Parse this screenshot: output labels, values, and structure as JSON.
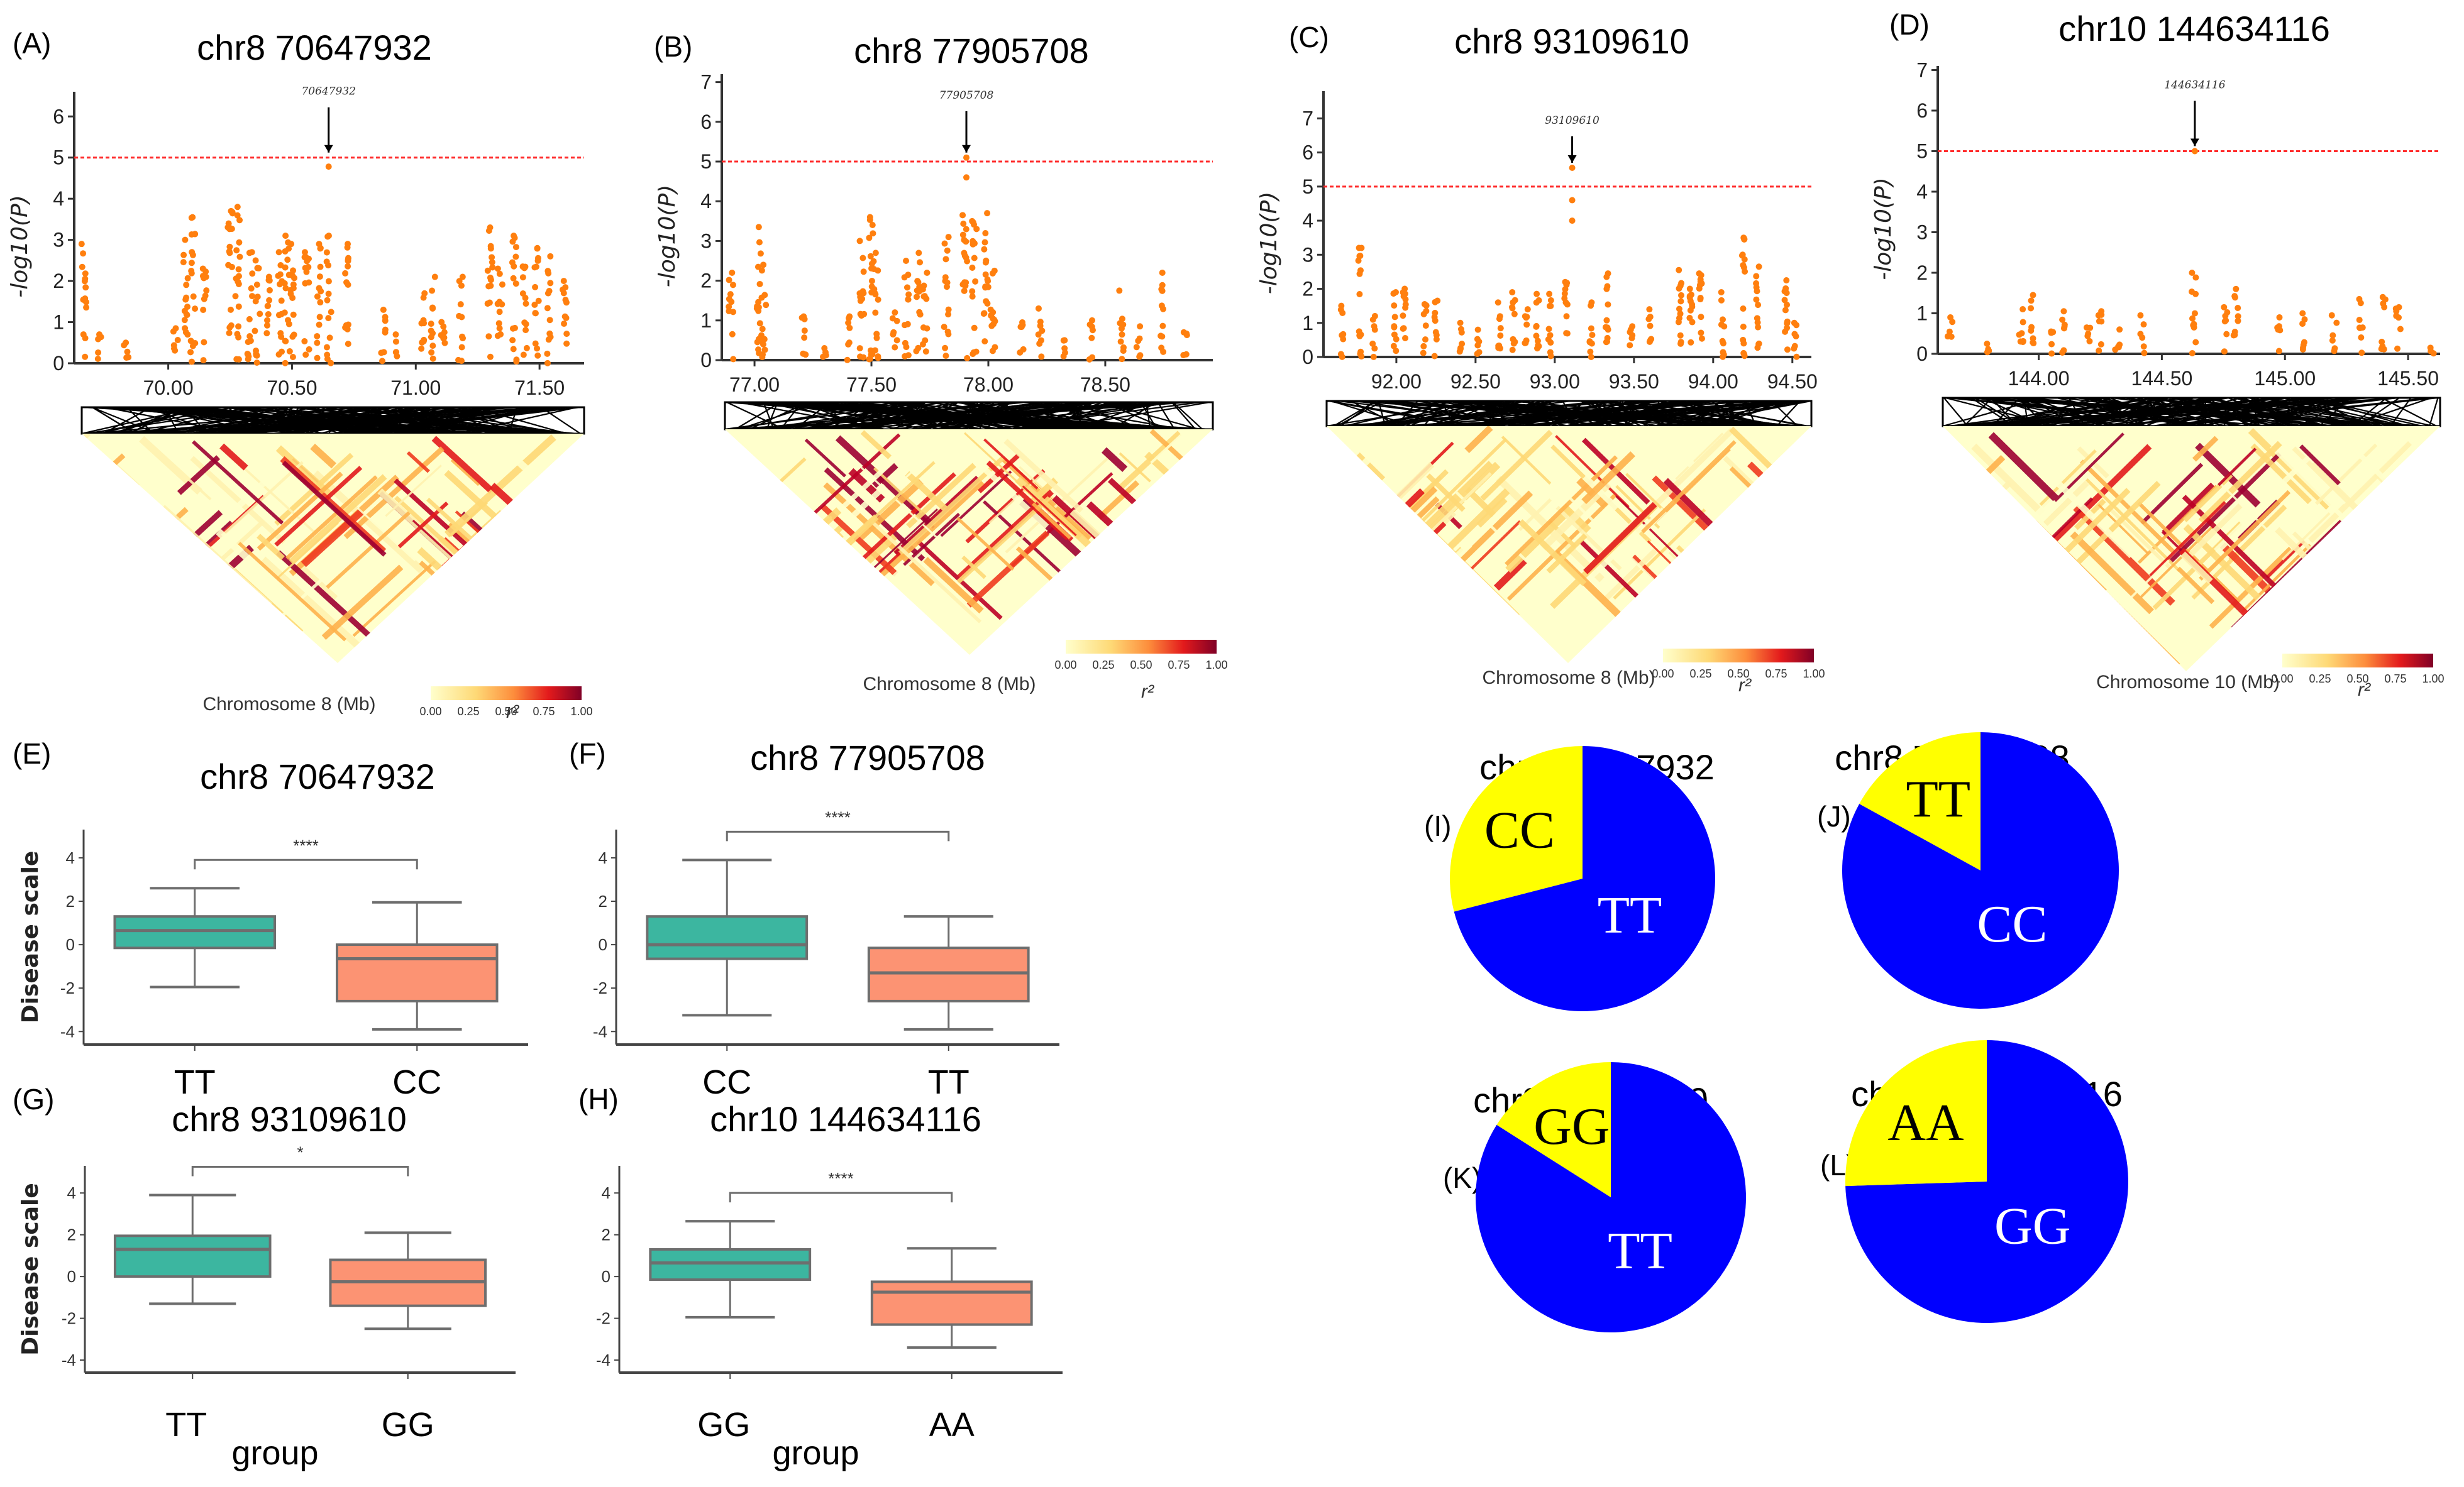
{
  "chart_data": {
    "manhattan": [
      {
        "panel": "(A)",
        "title": "chr8 70647932",
        "type": "scatter",
        "ylabel": "-log10(P)",
        "xlabel": "Chromosome 8 (Mb)",
        "xlim": [
          69.62,
          71.68
        ],
        "ylim": [
          0,
          6.6
        ],
        "yticks": [
          0,
          1,
          2,
          3,
          4,
          5,
          6
        ],
        "xticks": [
          "70.00",
          "70.50",
          "71.00",
          "71.50"
        ],
        "xtick_values": [
          70.0,
          70.5,
          71.0,
          71.5
        ],
        "threshold": 5,
        "lead_snp": {
          "label": "70647932",
          "x": 70.648,
          "y": 4.78
        },
        "clusters": [
          {
            "x": 69.66,
            "max": 2.9
          },
          {
            "x": 69.72,
            "max": 0.7
          },
          {
            "x": 69.83,
            "max": 0.5
          },
          {
            "x": 70.03,
            "max": 0.85
          },
          {
            "x": 70.07,
            "max": 3.0
          },
          {
            "x": 70.1,
            "max": 3.55
          },
          {
            "x": 70.15,
            "max": 2.3
          },
          {
            "x": 70.25,
            "max": 3.7
          },
          {
            "x": 70.28,
            "max": 3.8
          },
          {
            "x": 70.33,
            "max": 2.7
          },
          {
            "x": 70.36,
            "max": 2.5
          },
          {
            "x": 70.4,
            "max": 2.1
          },
          {
            "x": 70.45,
            "max": 2.7
          },
          {
            "x": 70.48,
            "max": 3.1
          },
          {
            "x": 70.5,
            "max": 2.9
          },
          {
            "x": 70.56,
            "max": 2.7
          },
          {
            "x": 70.61,
            "max": 2.9
          },
          {
            "x": 70.65,
            "max": 3.1
          },
          {
            "x": 70.72,
            "max": 2.9
          },
          {
            "x": 70.87,
            "max": 1.3
          },
          {
            "x": 70.92,
            "max": 0.7
          },
          {
            "x": 71.03,
            "max": 1.7
          },
          {
            "x": 71.07,
            "max": 2.1
          },
          {
            "x": 71.11,
            "max": 1.0
          },
          {
            "x": 71.18,
            "max": 2.1
          },
          {
            "x": 71.3,
            "max": 3.3
          },
          {
            "x": 71.34,
            "max": 2.3
          },
          {
            "x": 71.4,
            "max": 3.1
          },
          {
            "x": 71.44,
            "max": 2.35
          },
          {
            "x": 71.49,
            "max": 2.8
          },
          {
            "x": 71.54,
            "max": 2.6
          },
          {
            "x": 71.6,
            "max": 2.0
          }
        ]
      },
      {
        "panel": "(B)",
        "title": "chr8 77905708",
        "type": "scatter",
        "ylabel": "-log10(P)",
        "xlabel": "Chromosome 8 (Mb)",
        "xlim": [
          76.86,
          78.96
        ],
        "ylim": [
          0,
          7.2
        ],
        "yticks": [
          0,
          1,
          2,
          3,
          4,
          5,
          6,
          7
        ],
        "xticks": [
          "77.00",
          "77.50",
          "78.00",
          "78.50"
        ],
        "xtick_values": [
          77.0,
          77.5,
          78.0,
          78.5
        ],
        "threshold": 5,
        "lead_snp": {
          "label": "77905708",
          "x": 77.906,
          "y": 5.1
        },
        "extra_points": [
          {
            "x": 77.906,
            "y": 4.6
          }
        ],
        "clusters": [
          {
            "x": 76.9,
            "max": 2.2
          },
          {
            "x": 77.02,
            "max": 3.35
          },
          {
            "x": 77.04,
            "max": 2.4
          },
          {
            "x": 77.21,
            "max": 1.1
          },
          {
            "x": 77.3,
            "max": 0.3
          },
          {
            "x": 77.4,
            "max": 1.1
          },
          {
            "x": 77.46,
            "max": 3.0
          },
          {
            "x": 77.5,
            "max": 3.6
          },
          {
            "x": 77.52,
            "max": 2.7
          },
          {
            "x": 77.6,
            "max": 1.2
          },
          {
            "x": 77.65,
            "max": 2.5
          },
          {
            "x": 77.7,
            "max": 2.7
          },
          {
            "x": 77.73,
            "max": 2.2
          },
          {
            "x": 77.82,
            "max": 3.1
          },
          {
            "x": 77.9,
            "max": 3.65
          },
          {
            "x": 77.94,
            "max": 3.5
          },
          {
            "x": 77.99,
            "max": 3.7
          },
          {
            "x": 78.02,
            "max": 2.25
          },
          {
            "x": 78.14,
            "max": 0.95
          },
          {
            "x": 78.22,
            "max": 1.3
          },
          {
            "x": 78.32,
            "max": 0.5
          },
          {
            "x": 78.44,
            "max": 1.0
          },
          {
            "x": 78.57,
            "max": 1.75
          },
          {
            "x": 78.64,
            "max": 0.85
          },
          {
            "x": 78.74,
            "max": 2.2
          },
          {
            "x": 78.84,
            "max": 0.7
          }
        ]
      },
      {
        "panel": "(C)",
        "title": "chr8 93109610",
        "type": "scatter",
        "ylabel": "-log10(P)",
        "xlabel": "Chromosome 8 (Mb)",
        "xlim": [
          91.54,
          94.62
        ],
        "ylim": [
          0,
          7.8
        ],
        "yticks": [
          0,
          1,
          2,
          3,
          4,
          5,
          6,
          7
        ],
        "xticks": [
          "92.00",
          "92.50",
          "93.00",
          "93.50",
          "94.00",
          "94.50"
        ],
        "xtick_values": [
          92.0,
          92.5,
          93.0,
          93.5,
          94.0,
          94.5
        ],
        "threshold": 5,
        "lead_snp": {
          "label": "93109610",
          "x": 93.11,
          "y": 5.55
        },
        "extra_points": [
          {
            "x": 93.11,
            "y": 4.6
          },
          {
            "x": 93.11,
            "y": 4.0
          }
        ],
        "clusters": [
          {
            "x": 91.66,
            "max": 1.5
          },
          {
            "x": 91.77,
            "max": 3.2
          },
          {
            "x": 91.86,
            "max": 1.2
          },
          {
            "x": 91.99,
            "max": 1.9
          },
          {
            "x": 92.05,
            "max": 2.0
          },
          {
            "x": 92.18,
            "max": 1.55
          },
          {
            "x": 92.25,
            "max": 1.65
          },
          {
            "x": 92.41,
            "max": 1.0
          },
          {
            "x": 92.52,
            "max": 0.8
          },
          {
            "x": 92.65,
            "max": 1.6
          },
          {
            "x": 92.74,
            "max": 1.9
          },
          {
            "x": 92.82,
            "max": 1.4
          },
          {
            "x": 92.89,
            "max": 1.85
          },
          {
            "x": 92.97,
            "max": 1.85
          },
          {
            "x": 93.07,
            "max": 2.2
          },
          {
            "x": 93.23,
            "max": 1.6
          },
          {
            "x": 93.33,
            "max": 2.45
          },
          {
            "x": 93.48,
            "max": 0.9
          },
          {
            "x": 93.6,
            "max": 1.4
          },
          {
            "x": 93.79,
            "max": 2.55
          },
          {
            "x": 93.86,
            "max": 2.0
          },
          {
            "x": 93.92,
            "max": 2.45
          },
          {
            "x": 94.06,
            "max": 1.9
          },
          {
            "x": 94.19,
            "max": 3.5
          },
          {
            "x": 94.28,
            "max": 2.65
          },
          {
            "x": 94.46,
            "max": 2.25
          },
          {
            "x": 94.52,
            "max": 1.0
          }
        ]
      },
      {
        "panel": "(D)",
        "title": "chr10 144634116",
        "type": "scatter",
        "ylabel": "-log10(P)",
        "xlabel": "Chromosome 10 (Mb)",
        "xlim": [
          143.59,
          145.63
        ],
        "ylim": [
          0,
          7.1
        ],
        "yticks": [
          0,
          1,
          2,
          3,
          4,
          5,
          6,
          7
        ],
        "xticks": [
          "144.00",
          "144.50",
          "145.00",
          "145.50"
        ],
        "xtick_values": [
          144.0,
          144.5,
          145.0,
          145.5
        ],
        "threshold": 5,
        "lead_snp": {
          "label": "144634116",
          "x": 144.634,
          "y": 5.0
        },
        "clusters": [
          {
            "x": 143.64,
            "max": 0.9
          },
          {
            "x": 143.8,
            "max": 0.25
          },
          {
            "x": 143.93,
            "max": 1.1
          },
          {
            "x": 143.97,
            "max": 1.45
          },
          {
            "x": 144.05,
            "max": 0.55
          },
          {
            "x": 144.1,
            "max": 1.05
          },
          {
            "x": 144.2,
            "max": 0.65
          },
          {
            "x": 144.25,
            "max": 1.05
          },
          {
            "x": 144.32,
            "max": 0.6
          },
          {
            "x": 144.42,
            "max": 0.95
          },
          {
            "x": 144.63,
            "max": 2.0
          },
          {
            "x": 144.76,
            "max": 1.15
          },
          {
            "x": 144.8,
            "max": 1.6
          },
          {
            "x": 144.97,
            "max": 0.9
          },
          {
            "x": 145.08,
            "max": 1.0
          },
          {
            "x": 145.2,
            "max": 0.95
          },
          {
            "x": 145.31,
            "max": 1.35
          },
          {
            "x": 145.4,
            "max": 1.4
          },
          {
            "x": 145.46,
            "max": 1.15
          },
          {
            "x": 145.6,
            "max": 0.15
          }
        ]
      }
    ],
    "ld_heatmaps": [
      {
        "panel": "(A)",
        "xlabel": "Chromosome 8 (Mb)",
        "colorbar_label": "r²",
        "colorbar_ticks": [
          "0.00",
          "0.25",
          "0.50",
          "0.75",
          "1.00"
        ],
        "strong_ld_density": 0.34
      },
      {
        "panel": "(B)",
        "xlabel": "Chromosome 8 (Mb)",
        "colorbar_label": "r²",
        "colorbar_ticks": [
          "0.00",
          "0.25",
          "0.50",
          "0.75",
          "1.00"
        ],
        "strong_ld_density": 0.38
      },
      {
        "panel": "(C)",
        "xlabel": "Chromosome 8 (Mb)",
        "colorbar_label": "r²",
        "colorbar_ticks": [
          "0.00",
          "0.25",
          "0.50",
          "0.75",
          "1.00"
        ],
        "strong_ld_density": 0.2
      },
      {
        "panel": "(D)",
        "xlabel": "Chromosome 10 (Mb)",
        "colorbar_label": "r²",
        "colorbar_ticks": [
          "0.00",
          "0.25",
          "0.50",
          "0.75",
          "1.00"
        ],
        "strong_ld_density": 0.24
      }
    ],
    "boxplots": [
      {
        "panel": "(E)",
        "title": "chr8 70647932",
        "type": "box",
        "ylabel": "Disease scale",
        "xlabel": "",
        "ylim": [
          -4.6,
          5.3
        ],
        "yticks": [
          -4,
          -2,
          0,
          2,
          4
        ],
        "significance": "****",
        "groups": [
          {
            "name": "TT",
            "whisker_low": -1.95,
            "q1": -0.15,
            "median": 0.65,
            "q3": 1.3,
            "whisker_high": 2.6,
            "color": "#3cb6a0"
          },
          {
            "name": "CC",
            "whisker_low": -3.9,
            "q1": -2.6,
            "median": -0.65,
            "q3": 0.0,
            "whisker_high": 1.95,
            "color": "#fc9373"
          }
        ]
      },
      {
        "panel": "(F)",
        "title": "chr8 77905708",
        "type": "box",
        "ylabel": "",
        "xlabel": "",
        "ylim": [
          -4.6,
          5.3
        ],
        "yticks": [
          -4,
          -2,
          0,
          2,
          4
        ],
        "significance": "****",
        "groups": [
          {
            "name": "CC",
            "whisker_low": -3.25,
            "q1": -0.65,
            "median": 0.0,
            "q3": 1.3,
            "whisker_high": 3.9,
            "color": "#3cb6a0"
          },
          {
            "name": "TT",
            "whisker_low": -3.9,
            "q1": -2.6,
            "median": -1.3,
            "q3": -0.15,
            "whisker_high": 1.3,
            "color": "#fc9373"
          }
        ]
      },
      {
        "panel": "(G)",
        "title": "chr8 93109610",
        "type": "box",
        "ylabel": "Disease scale",
        "xlabel": "group",
        "ylim": [
          -4.6,
          5.3
        ],
        "yticks": [
          -4,
          -2,
          0,
          2,
          4
        ],
        "significance": "*",
        "groups": [
          {
            "name": "TT",
            "whisker_low": -1.3,
            "q1": 0.0,
            "median": 1.3,
            "q3": 1.95,
            "whisker_high": 3.9,
            "color": "#3cb6a0"
          },
          {
            "name": "GG",
            "whisker_low": -2.5,
            "q1": -1.4,
            "median": -0.25,
            "q3": 0.8,
            "whisker_high": 2.1,
            "color": "#fc9373"
          }
        ]
      },
      {
        "panel": "(H)",
        "title": "chr10 144634116",
        "type": "box",
        "ylabel": "",
        "xlabel": "group",
        "ylim": [
          -4.6,
          5.3
        ],
        "yticks": [
          -4,
          -2,
          0,
          2,
          4
        ],
        "significance": "****",
        "groups": [
          {
            "name": "GG",
            "whisker_low": -1.95,
            "q1": -0.15,
            "median": 0.65,
            "q3": 1.3,
            "whisker_high": 2.65,
            "color": "#3cb6a0"
          },
          {
            "name": "AA",
            "whisker_low": -3.4,
            "q1": -2.3,
            "median": -0.75,
            "q3": -0.25,
            "whisker_high": 1.35,
            "color": "#fc9373"
          }
        ]
      }
    ],
    "pies": [
      {
        "panel": "(I)",
        "title": "chr8 70647932",
        "type": "pie",
        "slices": [
          {
            "label": "TT",
            "value": 0.71,
            "color": "#0000ff",
            "text_color": "#ffffff"
          },
          {
            "label": "CC",
            "value": 0.29,
            "color": "#ffff00",
            "text_color": "#000000"
          }
        ]
      },
      {
        "panel": "(J)",
        "title": "chr8 77905708",
        "type": "pie",
        "slices": [
          {
            "label": "CC",
            "value": 0.83,
            "color": "#0000ff",
            "text_color": "#ffffff"
          },
          {
            "label": "TT",
            "value": 0.17,
            "color": "#ffff00",
            "text_color": "#000000"
          }
        ]
      },
      {
        "panel": "(K)",
        "title": "chr8 93109610",
        "type": "pie",
        "slices": [
          {
            "label": "TT",
            "value": 0.84,
            "color": "#0000ff",
            "text_color": "#ffffff"
          },
          {
            "label": "GG",
            "value": 0.16,
            "color": "#ffff00",
            "text_color": "#000000"
          }
        ]
      },
      {
        "panel": "(L)",
        "title": "chr10 144634116",
        "type": "pie",
        "slices": [
          {
            "label": "GG",
            "value": 0.745,
            "color": "#0000ff",
            "text_color": "#ffffff"
          },
          {
            "label": "AA",
            "value": 0.255,
            "color": "#ffff00",
            "text_color": "#000000"
          }
        ]
      }
    ]
  },
  "colors": {
    "point": "#ff7f0e",
    "threshold_line": "#ff2b2b",
    "box_outline": "#6e6e6e",
    "axis": "#333333"
  }
}
